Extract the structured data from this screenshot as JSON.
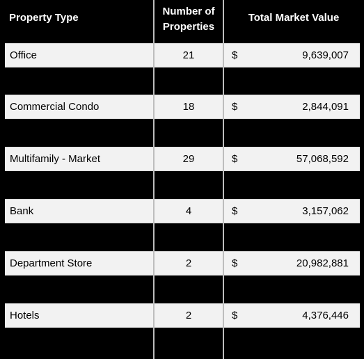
{
  "headers": {
    "type": "Property Type",
    "count_line1": "Number of",
    "count_line2": "Properties",
    "value": "Total Market Value"
  },
  "rows": [
    {
      "type": "Office",
      "count": "21",
      "dollar": "$",
      "value": "9,639,007",
      "style": "light"
    },
    {
      "type": "",
      "count": "",
      "dollar": "",
      "value": "",
      "style": "dark"
    },
    {
      "type": "Commercial Condo",
      "count": "18",
      "dollar": "$",
      "value": "2,844,091",
      "style": "light"
    },
    {
      "type": "",
      "count": "",
      "dollar": "",
      "value": "",
      "style": "dark"
    },
    {
      "type": "Multifamily - Market",
      "count": "29",
      "dollar": "$",
      "value": "57,068,592",
      "style": "light"
    },
    {
      "type": "",
      "count": "",
      "dollar": "",
      "value": "",
      "style": "dark"
    },
    {
      "type": "Bank",
      "count": "4",
      "dollar": "$",
      "value": "3,157,062",
      "style": "light"
    },
    {
      "type": "",
      "count": "",
      "dollar": "",
      "value": "",
      "style": "dark"
    },
    {
      "type": "Department Store",
      "count": "2",
      "dollar": "$",
      "value": "20,982,881",
      "style": "light"
    },
    {
      "type": "",
      "count": "",
      "dollar": "",
      "value": "",
      "style": "dark"
    },
    {
      "type": "Hotels",
      "count": "2",
      "dollar": "$",
      "value": "4,376,446",
      "style": "light"
    },
    {
      "type": "",
      "count": "",
      "dollar": "",
      "value": "",
      "style": "dark"
    }
  ]
}
